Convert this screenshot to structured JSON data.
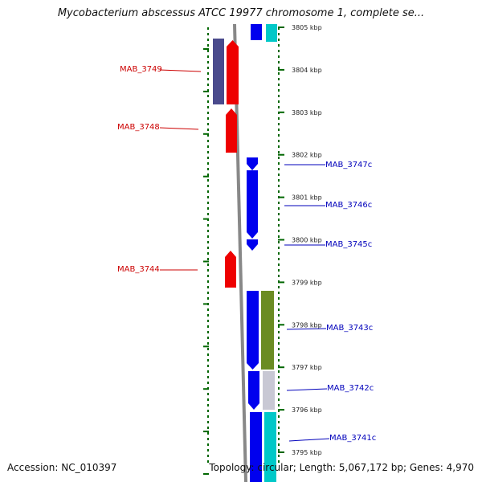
{
  "title": "Mycobacterium abscessus ATCC 19977 chromosome 1, complete se...",
  "accession": "Accession: NC_010397",
  "topology": "Topology: circular; Length: 5,067,172 bp; Genes: 4,970",
  "colors": {
    "forward": "#ee0000",
    "reverse": "#0000ee",
    "forward_label": "#cc0000",
    "reverse_label": "#0000bb",
    "backbone": "#888888",
    "tick": "#006600",
    "purple": "#4a4a8c",
    "cyan": "#00c8c8",
    "olive": "#6b8c23",
    "silver": "#c8c8d4"
  },
  "scale": [
    {
      "label": "3805 kbp",
      "kbp": 3805
    },
    {
      "label": "3804 kbp",
      "kbp": 3804
    },
    {
      "label": "3803 kbp",
      "kbp": 3803
    },
    {
      "label": "3802 kbp",
      "kbp": 3802
    },
    {
      "label": "3801 kbp",
      "kbp": 3801
    },
    {
      "label": "3800 kbp",
      "kbp": 3800
    },
    {
      "label": "3799 kbp",
      "kbp": 3799
    },
    {
      "label": "3798 kbp",
      "kbp": 3798
    },
    {
      "label": "3797 kbp",
      "kbp": 3797
    },
    {
      "label": "3796 kbp",
      "kbp": 3796
    },
    {
      "label": "3795 kbp",
      "kbp": 3795
    }
  ],
  "genes": [
    {
      "name": "MAB_3749",
      "strand": "forward"
    },
    {
      "name": "MAB_3748",
      "strand": "forward"
    },
    {
      "name": "MAB_3747c",
      "strand": "reverse"
    },
    {
      "name": "MAB_3746c",
      "strand": "reverse"
    },
    {
      "name": "MAB_3745c",
      "strand": "reverse"
    },
    {
      "name": "MAB_3744",
      "strand": "forward"
    },
    {
      "name": "MAB_3743c",
      "strand": "reverse"
    },
    {
      "name": "MAB_3742c",
      "strand": "reverse"
    },
    {
      "name": "MAB_3741c",
      "strand": "reverse"
    }
  ]
}
